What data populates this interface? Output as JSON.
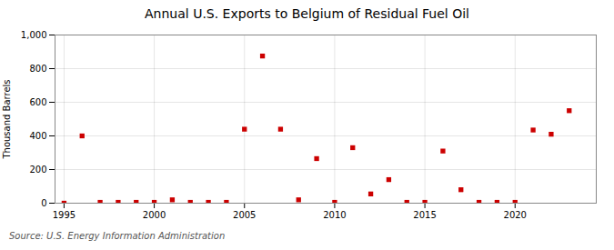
{
  "chart_data": {
    "type": "scatter",
    "title": "Annual U.S. Exports to Belgium of Residual Fuel Oil",
    "ylabel": "Thousand Barrels",
    "caption": "Source: U.S. Energy Information Administration",
    "x": [
      1995,
      1996,
      1997,
      1998,
      1999,
      2000,
      2001,
      2002,
      2003,
      2004,
      2005,
      2006,
      2007,
      2008,
      2009,
      2010,
      2011,
      2012,
      2013,
      2014,
      2015,
      2016,
      2017,
      2018,
      2019,
      2020,
      2021,
      2022,
      2023
    ],
    "values": [
      0,
      400,
      5,
      5,
      5,
      5,
      20,
      5,
      5,
      5,
      440,
      875,
      440,
      20,
      265,
      5,
      330,
      55,
      140,
      5,
      5,
      310,
      80,
      5,
      5,
      5,
      435,
      410,
      550
    ],
    "color": "#cc0000",
    "marker": "square",
    "xlim": [
      1994.5,
      2024.5
    ],
    "ylim": [
      0,
      1000
    ],
    "xticks": [
      1995,
      2000,
      2005,
      2010,
      2015,
      2020
    ],
    "yticks": [
      0,
      200,
      400,
      600,
      800,
      {
        "value": 1000,
        "label": "1,000"
      }
    ],
    "grid": true
  }
}
